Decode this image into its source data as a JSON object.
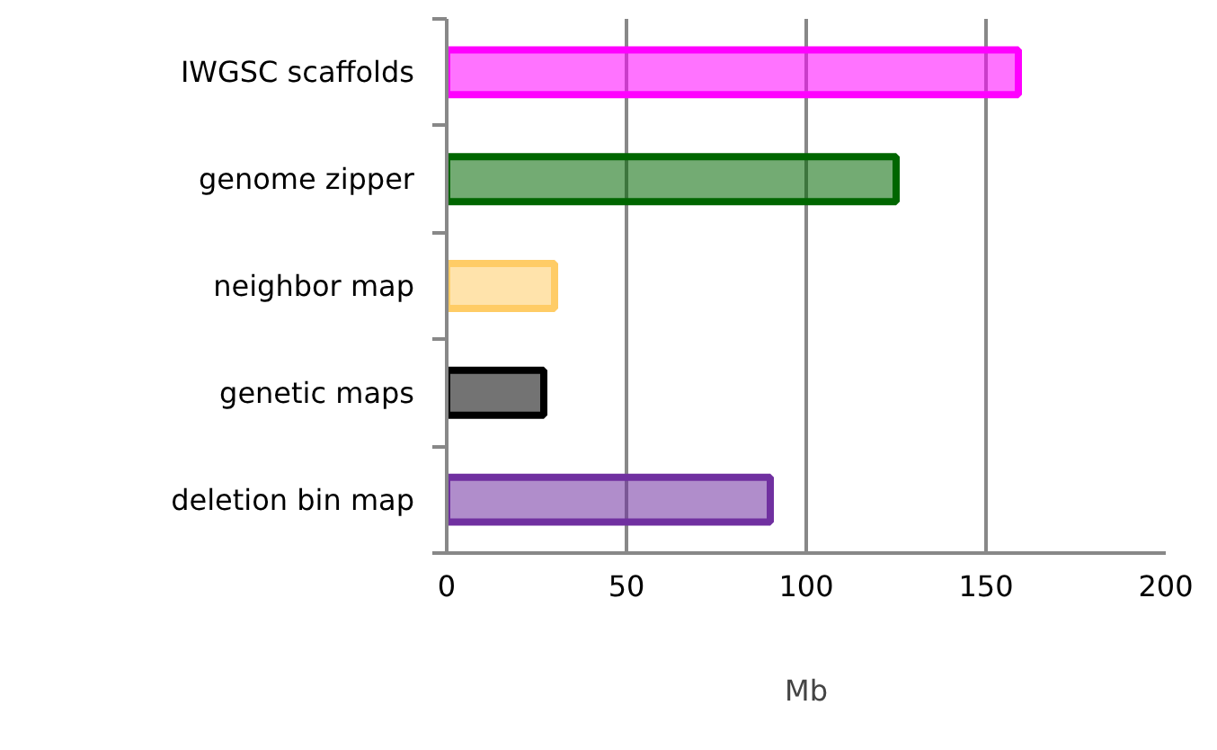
{
  "chart_data": {
    "type": "bar",
    "orientation": "horizontal",
    "xlabel": "Mb",
    "categories": [
      "IWGSC scaffolds",
      "genome zipper",
      "neighbor map",
      "genetic maps",
      "deletion bin map"
    ],
    "values": [
      159,
      125,
      30,
      27,
      90
    ],
    "colors": [
      "#ff00ff",
      "#006600",
      "#ffcc66",
      "#000000",
      "#7030a0"
    ],
    "xlim": [
      0,
      200
    ],
    "xticks": [
      0,
      50,
      100,
      150,
      200
    ],
    "grid": "x"
  }
}
